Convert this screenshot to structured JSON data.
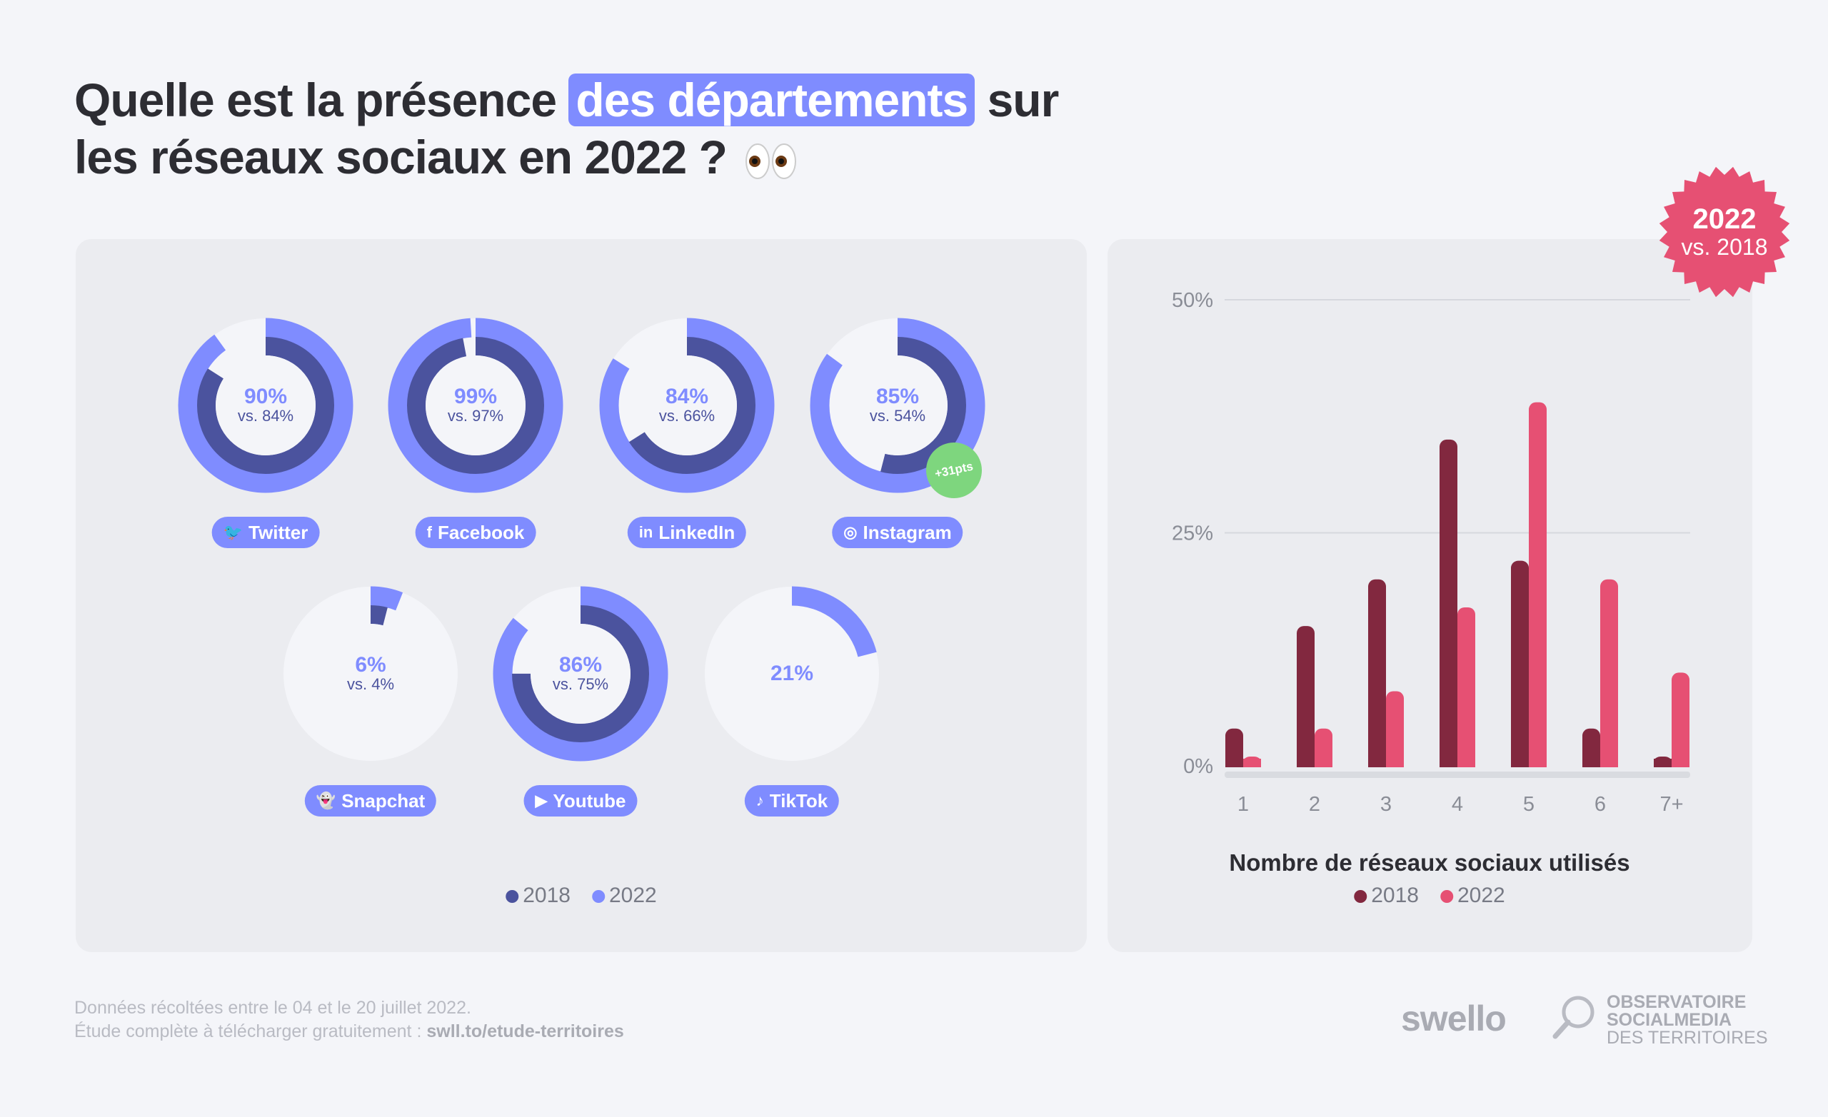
{
  "title": {
    "part1": "Quelle est la présence ",
    "highlight": "des départements",
    "part2": " sur",
    "line2": "les réseaux sociaux en 2022 ?"
  },
  "colors": {
    "c2018": "#4b539e",
    "c2022": "#7f8cff",
    "bar2018": "#82283f",
    "bar2022": "#e65073",
    "green": "#7ed67e"
  },
  "networks": [
    {
      "name": "Twitter",
      "icon": "twitter-icon",
      "glyph": "🐦",
      "v2022": 90,
      "v2018": 84,
      "pct": "90%",
      "vs": "vs. 84%"
    },
    {
      "name": "Facebook",
      "icon": "facebook-icon",
      "glyph": "f",
      "v2022": 99,
      "v2018": 97,
      "pct": "99%",
      "vs": "vs. 97%"
    },
    {
      "name": "LinkedIn",
      "icon": "linkedin-icon",
      "glyph": "in",
      "v2022": 84,
      "v2018": 66,
      "pct": "84%",
      "vs": "vs. 66%"
    },
    {
      "name": "Instagram",
      "icon": "instagram-icon",
      "glyph": "◎",
      "v2022": 85,
      "v2018": 54,
      "pct": "85%",
      "vs": "vs. 54%"
    },
    {
      "name": "Snapchat",
      "icon": "snapchat-icon",
      "glyph": "👻",
      "v2022": 6,
      "v2018": 4,
      "pct": "6%",
      "vs": "vs. 4%"
    },
    {
      "name": "Youtube",
      "icon": "youtube-icon",
      "glyph": "▶",
      "v2022": 86,
      "v2018": 75,
      "pct": "86%",
      "vs": "vs. 75%"
    },
    {
      "name": "TikTok",
      "icon": "tiktok-icon",
      "glyph": "♪",
      "v2022": 21,
      "v2018": null,
      "pct": "21%",
      "vs": ""
    }
  ],
  "instagram_badge": "+31pts",
  "donut_legend": [
    "2018",
    "2022"
  ],
  "stamp": {
    "year": "2022",
    "vs": "vs. 2018"
  },
  "chart_data": {
    "type": "bar",
    "title": "Nombre de réseaux sociaux utilisés",
    "categories": [
      "1",
      "2",
      "3",
      "4",
      "5",
      "6",
      "7+"
    ],
    "series": [
      {
        "name": "2018",
        "values": [
          4,
          15,
          20,
          35,
          22,
          4,
          1
        ]
      },
      {
        "name": "2022",
        "values": [
          1,
          4,
          8,
          17,
          39,
          20,
          10
        ]
      }
    ],
    "yticks": [
      "0%",
      "25%",
      "50%"
    ],
    "ylim": [
      0,
      50
    ],
    "grid": true,
    "legend": "bottom"
  },
  "footer": {
    "line1": "Données récoltées entre le 04 et le 20 juillet 2022.",
    "line2": "Étude complète à télécharger gratuitement : ",
    "link": "swll.to/etude-territoires"
  },
  "logos": {
    "swello": "swello",
    "obs1": "OBSERVATOIRE",
    "obs2": "SOCIALMEDIA",
    "obs3": "DES TERRITOIRES"
  }
}
